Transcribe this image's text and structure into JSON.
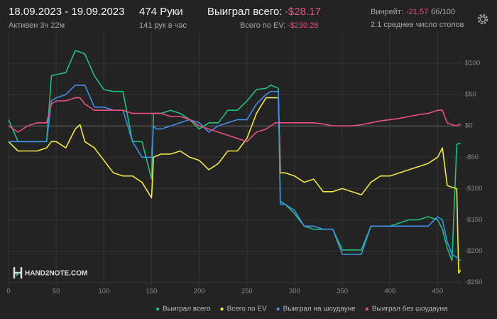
{
  "header": {
    "date_range": "18.09.2023 - 19.09.2023",
    "active_time": "Активен 3ч 22м",
    "hands": "474 Руки",
    "hands_per_hour": "141 рук в час",
    "won_total_label": "Выиграл всего:",
    "won_total_value": "-$28.17",
    "ev_total_label": "Всего по EV:",
    "ev_total_value": "-$230.28",
    "winrate_label": "Винрейт:",
    "winrate_value": "-21.57",
    "winrate_unit": "бб/100",
    "tables": "2.1 среднее число столов"
  },
  "watermark": "HAND2NOTE.COM",
  "chart_data": {
    "type": "line",
    "x": [
      0,
      10,
      20,
      30,
      40,
      45,
      50,
      60,
      70,
      75,
      80,
      90,
      100,
      110,
      120,
      130,
      140,
      150,
      152,
      155,
      160,
      170,
      180,
      190,
      200,
      210,
      220,
      230,
      240,
      250,
      260,
      270,
      275,
      280,
      283,
      285,
      290,
      300,
      310,
      320,
      330,
      340,
      350,
      360,
      370,
      380,
      390,
      400,
      410,
      420,
      430,
      440,
      450,
      455,
      460,
      465,
      470,
      472,
      474
    ],
    "series": [
      {
        "name": "Выиграл всего",
        "color": "#22c07a",
        "values": [
          10,
          -25,
          -25,
          -25,
          -25,
          80,
          82,
          85,
          120,
          118,
          115,
          80,
          58,
          55,
          55,
          -25,
          -25,
          -85,
          20,
          20,
          20,
          25,
          20,
          10,
          -5,
          5,
          5,
          25,
          25,
          40,
          58,
          60,
          65,
          62,
          60,
          -120,
          -125,
          -140,
          -160,
          -165,
          -165,
          -165,
          -198,
          -198,
          -198,
          -160,
          -160,
          -160,
          -155,
          -150,
          -150,
          -145,
          -150,
          -165,
          -195,
          -215,
          -30,
          -28,
          -28.17
        ]
      },
      {
        "name": "Всего по EV",
        "color": "#f2e64a",
        "values": [
          -25,
          -40,
          -40,
          -40,
          -35,
          -25,
          -25,
          -35,
          -5,
          2,
          -25,
          -35,
          -55,
          -75,
          -80,
          -80,
          -90,
          -115,
          -50,
          -48,
          -45,
          -45,
          -40,
          -50,
          -55,
          -70,
          -60,
          -40,
          -40,
          -20,
          20,
          45,
          45,
          45,
          45,
          -75,
          -75,
          -80,
          -90,
          -85,
          -105,
          -105,
          -100,
          -105,
          -110,
          -90,
          -80,
          -80,
          -75,
          -70,
          -65,
          -60,
          -50,
          -35,
          -95,
          -98,
          -100,
          -235,
          -230.28
        ]
      },
      {
        "name": "Выиграл на шоудауне",
        "color": "#3f8fe6",
        "values": [
          -25,
          -25,
          -25,
          -25,
          -25,
          40,
          45,
          50,
          65,
          65,
          65,
          30,
          30,
          25,
          25,
          -25,
          -50,
          -50,
          0,
          -5,
          -5,
          0,
          5,
          10,
          5,
          -10,
          0,
          5,
          10,
          10,
          35,
          50,
          55,
          55,
          55,
          -125,
          -125,
          -135,
          -160,
          -160,
          -165,
          -165,
          -205,
          -205,
          -205,
          -160,
          -160,
          -160,
          -160,
          -160,
          -160,
          -160,
          -145,
          -150,
          -185,
          -205,
          -210,
          -212,
          -215
        ]
      },
      {
        "name": "Выиграл без шоудауна",
        "color": "#e8507e",
        "values": [
          0,
          -10,
          0,
          5,
          5,
          35,
          40,
          40,
          45,
          45,
          35,
          25,
          25,
          25,
          25,
          20,
          20,
          20,
          20,
          20,
          20,
          15,
          15,
          10,
          0,
          -5,
          -10,
          -15,
          -20,
          -25,
          -10,
          -5,
          0,
          5,
          5,
          5,
          5,
          5,
          5,
          5,
          3,
          0,
          0,
          0,
          2,
          5,
          8,
          10,
          12,
          15,
          18,
          20,
          25,
          25,
          5,
          2,
          0,
          2,
          3
        ]
      }
    ],
    "xlim": [
      0,
      475
    ],
    "xticks": [
      0,
      50,
      100,
      150,
      200,
      250,
      300,
      350,
      400,
      450
    ],
    "ylim": [
      -255,
      150
    ],
    "yticks": [
      {
        "value": 100,
        "label": "$100"
      },
      {
        "value": 50,
        "label": "$50"
      },
      {
        "value": 0,
        "label": "$0"
      },
      {
        "value": -50,
        "label": "-$50"
      },
      {
        "value": -100,
        "label": "-$100"
      },
      {
        "value": -150,
        "label": "-$150"
      },
      {
        "value": -200,
        "label": "-$200"
      },
      {
        "value": -250,
        "label": "-$250"
      }
    ],
    "grid": true
  }
}
